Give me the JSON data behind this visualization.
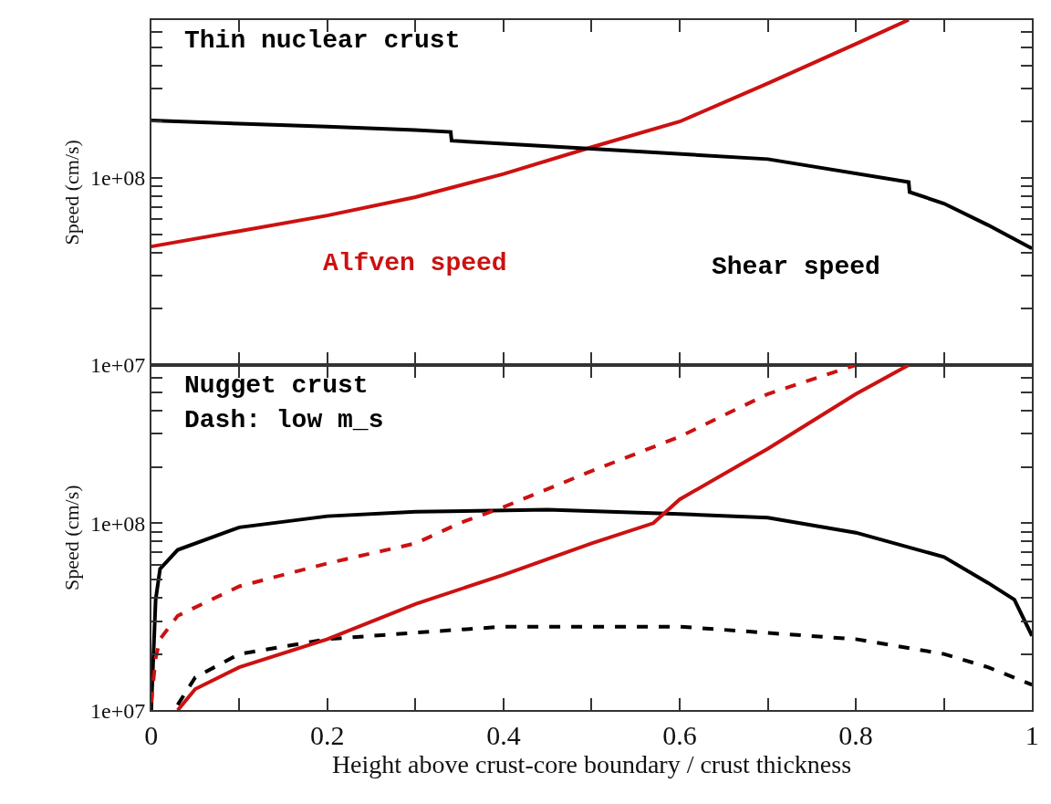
{
  "chart_data": [
    {
      "type": "line",
      "title": "Thin nuclear crust",
      "ylabel": "Speed (cm/s)",
      "log": true,
      "tick_labels": "y",
      "xlim": [
        0,
        1
      ],
      "ylim": [
        10000000.0,
        700000000.0
      ],
      "xticks": [
        0,
        0.1,
        0.2,
        0.3,
        0.4,
        0.5,
        0.6,
        0.7,
        0.8,
        0.9,
        1
      ],
      "yticks": [
        {
          "value": 10000000.0,
          "label": "1e+07"
        },
        {
          "value": 20000000.0,
          "label": null
        },
        {
          "value": 30000000.0,
          "label": null
        },
        {
          "value": 40000000.0,
          "label": null
        },
        {
          "value": 50000000.0,
          "label": null
        },
        {
          "value": 60000000.0,
          "label": null
        },
        {
          "value": 70000000.0,
          "label": null
        },
        {
          "value": 80000000.0,
          "label": null
        },
        {
          "value": 90000000.0,
          "label": null
        },
        {
          "value": 100000000.0,
          "label": "1e+08"
        },
        {
          "value": 200000000.0,
          "label": null
        },
        {
          "value": 300000000.0,
          "label": null
        },
        {
          "value": 400000000.0,
          "label": null
        },
        {
          "value": 500000000.0,
          "label": null
        },
        {
          "value": 600000000.0,
          "label": null
        }
      ],
      "series": [
        {
          "name": "Alfven speed",
          "color": "#cc1111",
          "line_style": "solid",
          "x": [
            0,
            0.1,
            0.2,
            0.3,
            0.4,
            0.5,
            0.6,
            0.7,
            0.8,
            0.86
          ],
          "values": [
            43000000.0,
            52000000.0,
            63000000.0,
            79000000.0,
            105000000.0,
            146000000.0,
            200000000.0,
            320000000.0,
            520000000.0,
            700000000.0
          ]
        },
        {
          "name": "Shear speed",
          "color": "#000000",
          "line_style": "solid",
          "x": [
            0,
            0.1,
            0.2,
            0.3,
            0.34,
            0.341,
            0.5,
            0.7,
            0.86,
            0.861,
            0.9,
            0.95,
            1
          ],
          "values": [
            203000000.0,
            195000000.0,
            188000000.0,
            180000000.0,
            176000000.0,
            158000000.0,
            143000000.0,
            126000000.0,
            95000000.0,
            84000000.0,
            73000000.0,
            56000000.0,
            42000000.0
          ]
        }
      ]
    },
    {
      "type": "line",
      "title": "Nugget crust",
      "subtitle": "Dash: low m_s",
      "xlabel": "Height above crust-core boundary / crust thickness",
      "ylabel": "Speed (cm/s)",
      "log": true,
      "xlim": [
        0,
        1
      ],
      "ylim": [
        10000000.0,
        700000000.0
      ],
      "xticks": [
        0,
        {
          "value": 0.1,
          "label": null
        },
        0.2,
        {
          "value": 0.3,
          "label": null
        },
        0.4,
        {
          "value": 0.5,
          "label": null
        },
        0.6,
        {
          "value": 0.7,
          "label": null
        },
        0.8,
        {
          "value": 0.9,
          "label": null
        },
        1
      ],
      "yticks": [
        {
          "value": 10000000.0,
          "label": "1e+07"
        },
        {
          "value": 20000000.0,
          "label": null
        },
        {
          "value": 30000000.0,
          "label": null
        },
        {
          "value": 40000000.0,
          "label": null
        },
        {
          "value": 50000000.0,
          "label": null
        },
        {
          "value": 60000000.0,
          "label": null
        },
        {
          "value": 70000000.0,
          "label": null
        },
        {
          "value": 80000000.0,
          "label": null
        },
        {
          "value": 90000000.0,
          "label": null
        },
        {
          "value": 100000000.0,
          "label": "1e+08"
        },
        {
          "value": 200000000.0,
          "label": null
        },
        {
          "value": 300000000.0,
          "label": null
        },
        {
          "value": 400000000.0,
          "label": null
        },
        {
          "value": 500000000.0,
          "label": null
        },
        {
          "value": 600000000.0,
          "label": null
        }
      ],
      "series": [
        {
          "color": "#000000",
          "line_style": "solid",
          "x": [
            0,
            0.005,
            0.01,
            0.03,
            0.1,
            0.2,
            0.3,
            0.45,
            0.6,
            0.7,
            0.8,
            0.9,
            0.95,
            0.98,
            1
          ],
          "values": [
            10000000.0,
            39000000.0,
            57000000.0,
            72000000.0,
            95000000.0,
            109000000.0,
            115000000.0,
            118000000.0,
            112000000.0,
            107000000.0,
            89000000.0,
            66000000.0,
            48000000.0,
            39000000.0,
            25000000.0
          ]
        },
        {
          "color": "#000000",
          "line_style": "dashed",
          "x": [
            0.03,
            0.05,
            0.1,
            0.2,
            0.3,
            0.4,
            0.6,
            0.8,
            0.9,
            0.95,
            1
          ],
          "values": [
            10700000.0,
            15000000.0,
            20000000.0,
            24000000.0,
            26000000.0,
            28000000.0,
            28000000.0,
            24000000.0,
            20000000.0,
            17000000.0,
            13700000.0
          ]
        },
        {
          "color": "#cc1111",
          "line_style": "solid",
          "x": [
            0.03,
            0.05,
            0.1,
            0.2,
            0.3,
            0.4,
            0.5,
            0.57,
            0.6,
            0.7,
            0.8,
            0.86
          ],
          "values": [
            10000000.0,
            13000000.0,
            17000000.0,
            24000000.0,
            37000000.0,
            53000000.0,
            78000000.0,
            100000000.0,
            134000000.0,
            250000000.0,
            490000000.0,
            700000000.0
          ]
        },
        {
          "color": "#cc1111",
          "line_style": "dashed",
          "x": [
            0,
            0.005,
            0.01,
            0.03,
            0.1,
            0.2,
            0.3,
            0.35,
            0.4,
            0.5,
            0.6,
            0.7,
            0.8
          ],
          "values": [
            11000000.0,
            19000000.0,
            24000000.0,
            32000000.0,
            46000000.0,
            61000000.0,
            78000000.0,
            100000000.0,
            122000000.0,
            190000000.0,
            290000000.0,
            490000000.0,
            700000000.0
          ]
        }
      ]
    }
  ]
}
